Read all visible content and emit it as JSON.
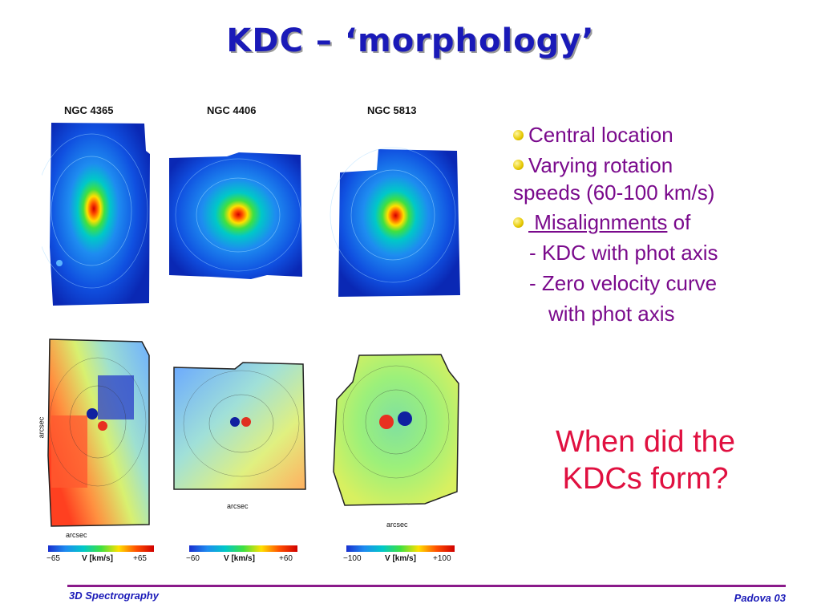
{
  "slide": {
    "title": "KDC – ‘morphology’",
    "galaxies": [
      {
        "name": "NGC 4365",
        "vmin": "−65",
        "vmax": "+65"
      },
      {
        "name": "NGC 4406",
        "vmin": "−60",
        "vmax": "+60"
      },
      {
        "name": "NGC 5813",
        "vmin": "−100",
        "vmax": "+100"
      }
    ],
    "colorbar_unit": "V [km/s]",
    "axis_label": "arcsec",
    "bullets": {
      "b1": "Central location",
      "b2a": "Varying rotation",
      "b2b": "speeds (60-100 km/s)",
      "b3_underlined": " Misalignments",
      "b3_rest": " of",
      "sub1": "- KDC with phot axis",
      "sub2": "- Zero velocity curve",
      "sub3": "with phot axis"
    },
    "question_line1": "When did the",
    "question_line2": "KDCs form?",
    "footer_left": "3D Spectrography",
    "footer_right": "Padova 03",
    "colors": {
      "title": "#1a1ab8",
      "bullet_text": "#7a0a8c",
      "question": "#e01040",
      "footer_rule": "#8a1a8a"
    }
  }
}
